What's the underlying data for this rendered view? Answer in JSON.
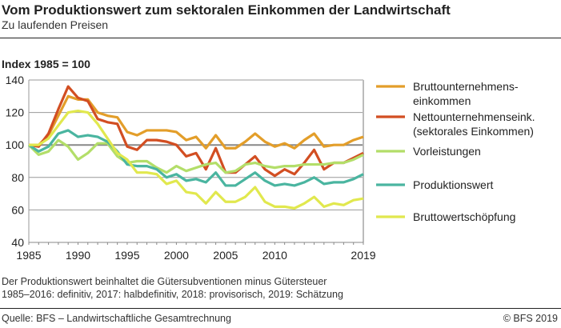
{
  "chart_data": {
    "type": "line",
    "title": "Vom Produktionswert zum sektoralen Einkommen der Landwirtschaft",
    "subtitle": "Zu laufenden Preisen",
    "ylabel": "Index 1985 = 100",
    "xlabel": "",
    "ylim": [
      40,
      140
    ],
    "yticks": [
      40,
      60,
      80,
      100,
      120,
      140
    ],
    "xlim": [
      1985,
      2019
    ],
    "xticks": [
      1985,
      1990,
      1995,
      2000,
      2005,
      2010,
      2019
    ],
    "grid": true,
    "legend": "right",
    "x": [
      1985,
      1986,
      1987,
      1988,
      1989,
      1990,
      1991,
      1992,
      1993,
      1994,
      1995,
      1996,
      1997,
      1998,
      1999,
      2000,
      2001,
      2002,
      2003,
      2004,
      2005,
      2006,
      2007,
      2008,
      2009,
      2010,
      2011,
      2012,
      2013,
      2014,
      2015,
      2016,
      2017,
      2018,
      2019
    ],
    "series": [
      {
        "name": "Bruttounternehmens-\neinkommen",
        "color": "#e39e2a",
        "values": [
          100,
          100,
          106,
          118,
          130,
          128,
          128,
          120,
          118,
          117,
          108,
          106,
          109,
          109,
          109,
          108,
          103,
          105,
          98,
          106,
          98,
          98,
          102,
          107,
          102,
          99,
          101,
          98,
          103,
          107,
          99,
          100,
          100,
          103,
          105
        ]
      },
      {
        "name": "Nettounternehmenseink.\n(sektorales Einkommen)",
        "color": "#d24e22",
        "values": [
          100,
          99,
          107,
          122,
          136,
          129,
          127,
          116,
          114,
          113,
          99,
          97,
          103,
          103,
          102,
          100,
          93,
          95,
          85,
          98,
          83,
          83,
          88,
          93,
          85,
          81,
          85,
          82,
          89,
          97,
          85,
          89,
          89,
          92,
          95
        ]
      },
      {
        "name": "Vorleistungen",
        "color": "#b3de69",
        "values": [
          100,
          94,
          96,
          103,
          99,
          91,
          95,
          101,
          101,
          93,
          89,
          90,
          90,
          86,
          83,
          87,
          84,
          86,
          88,
          89,
          83,
          84,
          88,
          89,
          87,
          86,
          87,
          87,
          88,
          88,
          88,
          89,
          89,
          91,
          94
        ]
      },
      {
        "name": "Produktionswert",
        "color": "#4ab5a0",
        "values": [
          100,
          96,
          99,
          107,
          109,
          105,
          106,
          105,
          102,
          96,
          88,
          87,
          87,
          85,
          80,
          82,
          78,
          79,
          77,
          83,
          75,
          75,
          79,
          83,
          78,
          75,
          76,
          75,
          77,
          80,
          76,
          77,
          77,
          79,
          82
        ]
      },
      {
        "name": "Bruttowertschöpfung",
        "color": "#e1e84e",
        "values": [
          100,
          100,
          104,
          112,
          120,
          121,
          120,
          113,
          104,
          95,
          91,
          83,
          83,
          82,
          76,
          78,
          71,
          70,
          64,
          71,
          65,
          65,
          68,
          74,
          65,
          62,
          62,
          61,
          64,
          68,
          62,
          64,
          63,
          66,
          67
        ]
      }
    ]
  },
  "notes": [
    "Der Produktionswert beinhaltet die Gütersubventionen minus Gütersteuer",
    "1985–2016: definitiv, 2017: halbdefinitiv, 2018: provisorisch, 2019: Schätzung"
  ],
  "source": "Quelle: BFS – Landwirtschaftliche Gesamtrechnung",
  "copyright": "© BFS 2019"
}
